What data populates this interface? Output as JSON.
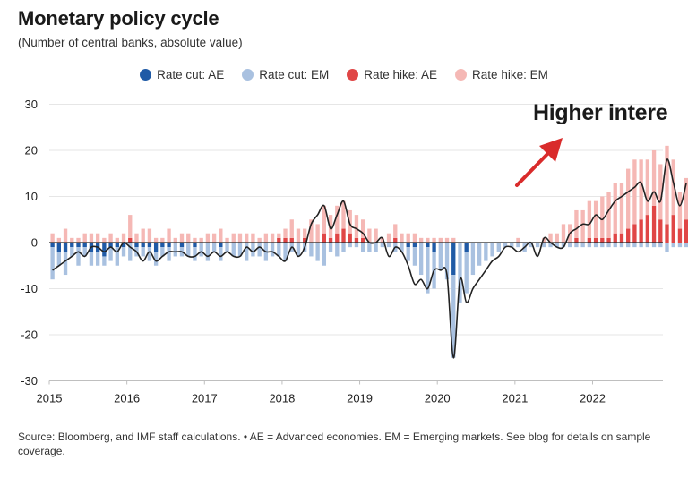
{
  "header": {
    "title": "Monetary policy cycle",
    "subtitle": "(Number of central banks, absolute value)"
  },
  "legend": [
    {
      "label": "Rate cut: AE",
      "color": "#1f5aa6"
    },
    {
      "label": "Rate cut: EM",
      "color": "#a9c1e0"
    },
    {
      "label": "Rate hike: AE",
      "color": "#e04646"
    },
    {
      "label": "Rate hike: EM",
      "color": "#f5b8b5"
    }
  ],
  "annotation": {
    "text": "Higher intere",
    "arrow_color": "#d92b2b"
  },
  "footer": {
    "source": "Source: Bloomberg, and IMF staff calculations. • AE = Advanced economies. EM = Emerging markets. See blog for details on sample coverage."
  },
  "chart_data": {
    "type": "bar",
    "title": "Monetary policy cycle",
    "ylabel": "Number of central banks, absolute value",
    "ylim": [
      -30,
      30
    ],
    "yticks": [
      30,
      20,
      10,
      0,
      -10,
      -20,
      -30
    ],
    "xticks": [
      "2015",
      "2016",
      "2017",
      "2018",
      "2019",
      "2020",
      "2021",
      "2022"
    ],
    "x_start_year": 2015,
    "bar_width_months": 0.6,
    "series": [
      {
        "name": "Rate cut: AE",
        "color": "#1f5aa6",
        "values": [
          -1,
          -2,
          -2,
          -1,
          -1,
          -1,
          -2,
          -2,
          -3,
          -1,
          -1,
          -1,
          0,
          -1,
          -1,
          -1,
          -2,
          -1,
          -1,
          0,
          -1,
          0,
          -1,
          0,
          0,
          0,
          -1,
          0,
          0,
          0,
          0,
          0,
          0,
          0,
          0,
          0,
          0,
          0,
          0,
          0,
          0,
          0,
          0,
          0,
          0,
          0,
          0,
          0,
          0,
          0,
          0,
          0,
          0,
          0,
          0,
          -1,
          -1,
          0,
          -1,
          -2,
          0,
          0,
          -7,
          0,
          -2,
          0,
          0,
          0,
          0,
          0,
          0,
          0,
          0,
          0,
          0,
          0,
          0,
          0,
          0,
          0,
          0,
          0,
          0,
          0,
          0,
          0,
          0,
          0,
          0,
          0,
          0,
          0,
          0,
          0,
          0,
          0,
          0,
          0,
          0
        ]
      },
      {
        "name": "Rate cut: EM",
        "color": "#a9c1e0",
        "values": [
          -7,
          -3,
          -5,
          -2,
          -4,
          -2,
          -3,
          -3,
          -2,
          -3,
          -4,
          -2,
          -4,
          -2,
          -2,
          -3,
          -3,
          -2,
          -3,
          -3,
          -2,
          -3,
          -3,
          -3,
          -4,
          -2,
          -3,
          -2,
          -3,
          -3,
          -4,
          -3,
          -3,
          -4,
          -3,
          -3,
          -4,
          -2,
          -3,
          -2,
          -3,
          -4,
          -5,
          -2,
          -3,
          -2,
          -1,
          -1,
          -2,
          -2,
          -2,
          -1,
          -1,
          -2,
          -2,
          -3,
          -4,
          -7,
          -10,
          -8,
          -6,
          -8,
          -18,
          -13,
          -9,
          -7,
          -5,
          -4,
          -3,
          -2,
          -1,
          -1,
          -1,
          -2,
          -1,
          -1,
          -1,
          -1,
          -1,
          -1,
          -1,
          -1,
          -1,
          -1,
          -1,
          -1,
          -1,
          -1,
          -1,
          -1,
          -1,
          -1,
          -1,
          -1,
          -1,
          -2,
          -1,
          -1,
          -1
        ]
      },
      {
        "name": "Rate hike: AE",
        "color": "#e04646",
        "values": [
          0,
          0,
          0,
          0,
          0,
          0,
          0,
          0,
          0,
          0,
          0,
          0,
          1,
          0,
          0,
          0,
          0,
          0,
          0,
          0,
          0,
          0,
          0,
          0,
          0,
          0,
          0,
          0,
          0,
          0,
          0,
          0,
          0,
          0,
          0,
          1,
          1,
          1,
          0,
          1,
          0,
          0,
          2,
          1,
          2,
          3,
          2,
          1,
          1,
          0,
          0,
          0,
          0,
          1,
          0,
          0,
          0,
          0,
          0,
          0,
          0,
          0,
          0,
          0,
          0,
          0,
          0,
          0,
          0,
          0,
          0,
          0,
          0,
          0,
          0,
          0,
          0,
          0,
          0,
          0,
          0,
          1,
          0,
          1,
          1,
          1,
          1,
          2,
          2,
          3,
          4,
          5,
          6,
          8,
          5,
          4,
          6,
          3,
          5
        ]
      },
      {
        "name": "Rate hike: EM",
        "color": "#f5b8b5",
        "values": [
          2,
          1,
          3,
          1,
          1,
          2,
          2,
          2,
          1,
          2,
          1,
          2,
          5,
          2,
          3,
          3,
          1,
          1,
          3,
          1,
          2,
          2,
          1,
          1,
          2,
          2,
          3,
          1,
          2,
          2,
          2,
          2,
          1,
          2,
          2,
          1,
          2,
          4,
          3,
          2,
          5,
          4,
          6,
          5,
          6,
          6,
          5,
          5,
          4,
          3,
          3,
          1,
          2,
          3,
          2,
          2,
          2,
          1,
          1,
          1,
          1,
          1,
          1,
          0,
          0,
          0,
          0,
          0,
          0,
          0,
          0,
          0,
          1,
          0,
          0,
          0,
          1,
          2,
          2,
          4,
          4,
          6,
          7,
          8,
          8,
          9,
          10,
          11,
          11,
          13,
          14,
          13,
          12,
          12,
          12,
          17,
          12,
          8,
          9
        ]
      }
    ],
    "net_line": {
      "name": "Net (hikes minus cuts)",
      "color": "#222222",
      "values": [
        -6,
        -5,
        -4,
        -3,
        -2,
        -3,
        -1,
        -1,
        -2,
        -1,
        -2,
        0,
        -1,
        -2,
        -4,
        -2,
        -4,
        -3,
        -2,
        -2,
        -2,
        -3,
        -3,
        -2,
        -3,
        -2,
        -3,
        -2,
        -3,
        -3,
        -1,
        -2,
        -1,
        -2,
        -2,
        -3,
        -4,
        -1,
        -3,
        -1,
        4,
        6,
        8,
        3,
        6,
        9,
        4,
        3,
        2,
        0,
        0,
        1,
        -3,
        -1,
        -2,
        -5,
        -9,
        -8,
        -10,
        -6,
        -6,
        -7,
        -25,
        -8,
        -13,
        -10,
        -8,
        -6,
        -4,
        -3,
        -1,
        -1,
        -2,
        -1,
        0,
        -3,
        1,
        0,
        -1,
        -1,
        2,
        3,
        4,
        4,
        6,
        5,
        7,
        9,
        10,
        11,
        12,
        13,
        9,
        11,
        9,
        18,
        13,
        8,
        13
      ]
    }
  }
}
